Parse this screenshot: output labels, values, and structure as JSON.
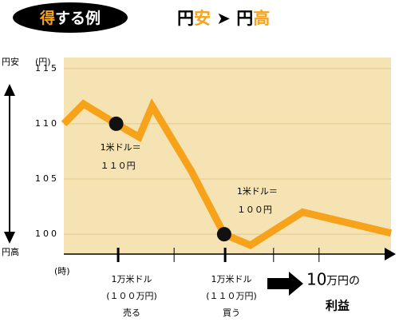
{
  "chart_data": {
    "type": "line",
    "title_badge": [
      {
        "text": "得",
        "color": "#f7a21b"
      },
      {
        "text": "する例",
        "color": "#ffffff"
      }
    ],
    "title": [
      {
        "text": "円",
        "color": "#000000"
      },
      {
        "text": "安",
        "color": "#f7a21b"
      },
      {
        "text": " ➤ ",
        "color": "#000000"
      },
      {
        "text": "円",
        "color": "#000000"
      },
      {
        "text": "高",
        "color": "#f7a21b"
      }
    ],
    "y_label": "(円)",
    "x_label": "(時)",
    "y_top_label": "円安",
    "y_bottom_label": "円高",
    "x": [
      0,
      0.6,
      1.6,
      2.3,
      2.7,
      3.9,
      4.9,
      5.7,
      7.3,
      10
    ],
    "values": [
      110,
      111.8,
      110,
      108.8,
      111.6,
      105.7,
      100,
      99,
      102,
      100.1
    ],
    "color": "#f7a21b",
    "xlim": [
      0,
      10
    ],
    "ylim": [
      98.2,
      116
    ],
    "yticks": [
      100,
      105,
      110,
      115
    ],
    "xticks": [
      1.66,
      3.37,
      4.93,
      6.41,
      7.8
    ],
    "annotations": [
      {
        "point": 2,
        "lines": [
          "1米ドル＝",
          "１１０円"
        ]
      },
      {
        "point": 6,
        "lines": [
          "1米ドル＝",
          "１００円"
        ]
      }
    ],
    "events": [
      {
        "lines": [
          "1万米ドル",
          "(１００万円)",
          "売る"
        ]
      },
      {
        "lines": [
          "1万米ドル",
          "(１１０万円)",
          "買う"
        ]
      }
    ],
    "result": {
      "amount": "10",
      "unit": "万円の",
      "label": "利益"
    }
  }
}
